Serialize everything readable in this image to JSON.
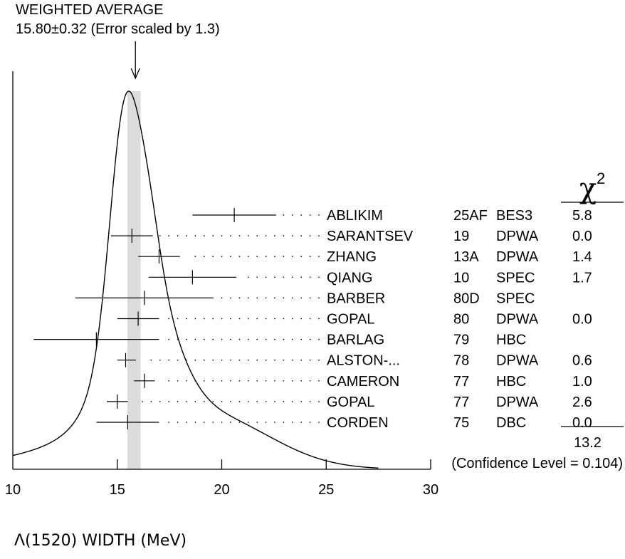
{
  "chart_data": {
    "type": "ideogram",
    "weighted_average": {
      "title": "WEIGHTED AVERAGE",
      "value_text": "15.80±0.32 (Error scaled by 1.3)",
      "value": 15.8,
      "error": 0.32
    },
    "xlabel": "Λ(1520) WIDTH (MeV)",
    "xlim": [
      10,
      30
    ],
    "xticks": [
      "10",
      "15",
      "20",
      "25",
      "30"
    ],
    "chi2_header": "χ",
    "chi2_superscript": "2",
    "measurements": [
      {
        "name": "ABLIKIM",
        "ref": "25AF",
        "tech": "BES3",
        "chi2": "5.8",
        "value": 20.6,
        "low": 18.6,
        "high": 22.6
      },
      {
        "name": "SARANTSEV",
        "ref": "19",
        "tech": "DPWA",
        "chi2": "0.0",
        "value": 15.7,
        "low": 14.7,
        "high": 16.7
      },
      {
        "name": "ZHANG",
        "ref": "13A",
        "tech": "DPWA",
        "chi2": "1.4",
        "value": 17.0,
        "low": 16.0,
        "high": 18.0
      },
      {
        "name": "QIANG",
        "ref": "10",
        "tech": "SPEC",
        "chi2": "1.7",
        "value": 18.6,
        "low": 16.5,
        "high": 20.7
      },
      {
        "name": "BARBER",
        "ref": "80D",
        "tech": "SPEC",
        "chi2": "",
        "value": 16.3,
        "low": 13.0,
        "high": 19.6
      },
      {
        "name": "GOPAL",
        "ref": "80",
        "tech": "DPWA",
        "chi2": "0.0",
        "value": 16.0,
        "low": 15.0,
        "high": 17.0
      },
      {
        "name": "BARLAG",
        "ref": "79",
        "tech": "HBC",
        "chi2": "",
        "value": 14.0,
        "low": 11.0,
        "high": 17.0
      },
      {
        "name": "ALSTON-...",
        "ref": "78",
        "tech": "DPWA",
        "chi2": "0.6",
        "value": 15.4,
        "low": 15.0,
        "high": 15.9
      },
      {
        "name": "CAMERON",
        "ref": "77",
        "tech": "HBC",
        "chi2": "1.0",
        "value": 16.3,
        "low": 15.8,
        "high": 16.8
      },
      {
        "name": "GOPAL",
        "ref": "77",
        "tech": "DPWA",
        "chi2": "2.6",
        "value": 15.0,
        "low": 14.5,
        "high": 15.5
      },
      {
        "name": "CORDEN",
        "ref": "75",
        "tech": "DBC",
        "chi2": "0.0",
        "value": 15.5,
        "low": 14.0,
        "high": 17.0
      }
    ],
    "chi2_total": "13.2",
    "confidence_level": "(Confidence Level = 0.104)"
  }
}
